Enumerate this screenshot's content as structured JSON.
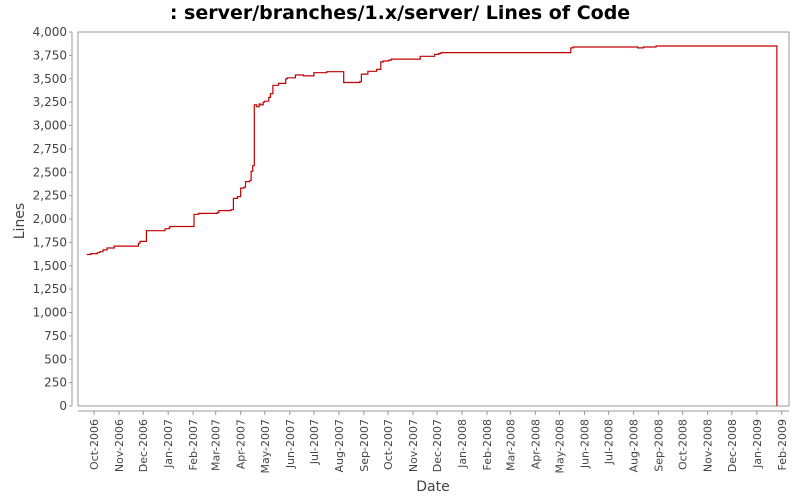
{
  "chart_data": {
    "type": "line",
    "title": ": server/branches/1.x/server/ Lines of Code",
    "xlabel": "Date",
    "ylabel": "Lines",
    "ylim": [
      0,
      4000
    ],
    "y_ticks": [
      0,
      250,
      500,
      750,
      1000,
      1250,
      1500,
      1750,
      2000,
      2250,
      2500,
      2750,
      3000,
      3250,
      3500,
      3750,
      4000
    ],
    "y_tick_labels": [
      "0",
      "250",
      "500",
      "750",
      "1,000",
      "1,250",
      "1,500",
      "1,750",
      "2,000",
      "2,250",
      "2,500",
      "2,750",
      "3,000",
      "3,250",
      "3,500",
      "3,750",
      "4,000"
    ],
    "x_range": [
      "2006-09-11",
      "2009-02-10"
    ],
    "x_ticks": [
      "2006-10-01",
      "2006-11-01",
      "2006-12-01",
      "2007-01-01",
      "2007-02-01",
      "2007-03-01",
      "2007-04-01",
      "2007-05-01",
      "2007-06-01",
      "2007-07-01",
      "2007-08-01",
      "2007-09-01",
      "2007-10-01",
      "2007-11-01",
      "2007-12-01",
      "2008-01-01",
      "2008-02-01",
      "2008-03-01",
      "2008-04-01",
      "2008-05-01",
      "2008-06-01",
      "2008-07-01",
      "2008-08-01",
      "2008-09-01",
      "2008-10-01",
      "2008-11-01",
      "2008-12-01",
      "2009-01-01",
      "2009-02-01"
    ],
    "x_tick_labels": [
      "Oct-2006",
      "Nov-2006",
      "Dec-2006",
      "Jan-2007",
      "Feb-2007",
      "Mar-2007",
      "Apr-2007",
      "May-2007",
      "Jun-2007",
      "Jul-2007",
      "Aug-2007",
      "Sep-2007",
      "Oct-2007",
      "Nov-2007",
      "Dec-2007",
      "Jan-2008",
      "Feb-2008",
      "Mar-2008",
      "Apr-2008",
      "May-2008",
      "Jun-2008",
      "Jul-2008",
      "Aug-2008",
      "Sep-2008",
      "Oct-2008",
      "Nov-2008",
      "Dec-2008",
      "Jan-2009",
      "Feb-2009"
    ],
    "grid": false,
    "line_color": "#c00000",
    "series": [
      {
        "x": [
          "2006-09-22",
          "2006-09-27",
          "2006-10-05",
          "2006-10-08",
          "2006-10-12",
          "2006-10-17",
          "2006-10-26",
          "2006-11-25",
          "2006-11-27",
          "2006-12-05",
          "2006-12-28",
          "2007-01-01",
          "2007-01-03",
          "2007-02-02",
          "2007-02-05",
          "2007-02-08",
          "2007-03-03",
          "2007-03-05",
          "2007-03-13",
          "2007-03-20",
          "2007-03-23",
          "2007-03-28",
          "2007-04-01",
          "2007-04-05",
          "2007-04-07",
          "2007-04-12",
          "2007-04-14",
          "2007-04-16",
          "2007-04-18",
          "2007-04-21",
          "2007-04-24",
          "2007-04-26",
          "2007-04-29",
          "2007-05-01",
          "2007-05-06",
          "2007-05-08",
          "2007-05-11",
          "2007-05-18",
          "2007-05-27",
          "2007-05-29",
          "2007-06-08",
          "2007-06-18",
          "2007-07-01",
          "2007-07-17",
          "2007-08-07",
          "2007-08-27",
          "2007-08-29",
          "2007-09-06",
          "2007-09-17",
          "2007-09-22",
          "2007-09-25",
          "2007-09-28",
          "2007-10-02",
          "2007-10-05",
          "2007-10-26",
          "2007-11-10",
          "2007-11-28",
          "2007-12-03",
          "2007-12-06",
          "2008-02-01",
          "2008-05-15",
          "2008-05-18",
          "2008-08-06",
          "2008-08-13",
          "2008-08-29",
          "2009-01-26",
          "2009-01-26"
        ],
        "values": [
          1620,
          1630,
          1640,
          1650,
          1670,
          1690,
          1710,
          1740,
          1760,
          1875,
          1895,
          1900,
          1920,
          2050,
          2050,
          2060,
          2070,
          2090,
          2090,
          2100,
          2220,
          2240,
          2330,
          2340,
          2400,
          2410,
          2510,
          2570,
          3220,
          3200,
          3230,
          3220,
          3250,
          3260,
          3300,
          3340,
          3430,
          3450,
          3500,
          3510,
          3540,
          3530,
          3565,
          3575,
          3460,
          3470,
          3550,
          3580,
          3600,
          3680,
          3690,
          3690,
          3700,
          3710,
          3710,
          3740,
          3760,
          3770,
          3780,
          3780,
          3830,
          3840,
          3830,
          3840,
          3850,
          3850,
          0
        ]
      }
    ]
  }
}
